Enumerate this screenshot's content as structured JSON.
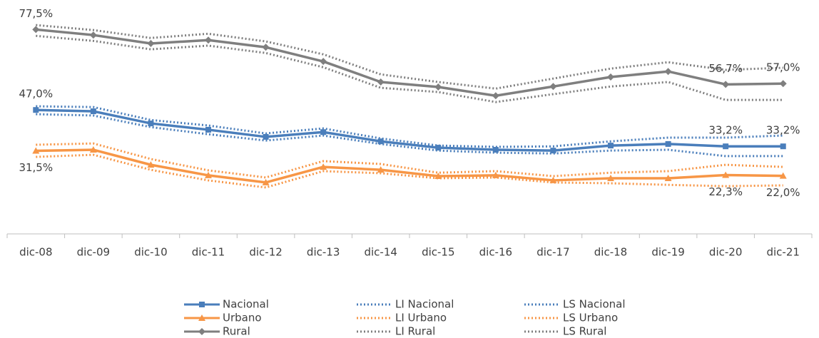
{
  "chart_data": {
    "type": "line",
    "categories": [
      "dic-08",
      "dic-09",
      "dic-10",
      "dic-11",
      "dic-12",
      "dic-13",
      "dic-14",
      "dic-15",
      "dic-16",
      "dic-17",
      "dic-18",
      "dic-19",
      "dic-20",
      "dic-21"
    ],
    "ylim": [
      0,
      86
    ],
    "series": [
      {
        "name": "Nacional",
        "color": "#4a7ebb",
        "style": "solid",
        "marker": "square",
        "values": [
          47.0,
          46.5,
          41.9,
          39.5,
          36.8,
          38.6,
          35.1,
          32.7,
          31.9,
          31.6,
          33.5,
          34.1,
          33.2,
          33.2
        ],
        "value_labels": [
          "47,0%",
          null,
          null,
          null,
          null,
          null,
          null,
          null,
          null,
          null,
          null,
          null,
          "33,2%",
          "33,2%"
        ]
      },
      {
        "name": "LI Nacional",
        "color": "#4a7ebb",
        "style": "dotted",
        "values": [
          45.4,
          44.9,
          40.5,
          37.8,
          35.4,
          37.3,
          34.1,
          31.6,
          30.8,
          30.5,
          31.6,
          31.9,
          29.5,
          29.5
        ]
      },
      {
        "name": "LS Nacional",
        "color": "#4a7ebb",
        "style": "dotted",
        "values": [
          48.4,
          48.1,
          43.2,
          41.1,
          38.1,
          40.0,
          36.2,
          33.5,
          33.0,
          33.2,
          35.1,
          36.5,
          36.5,
          37.3
        ]
      },
      {
        "name": "Urbano",
        "color": "#f79646",
        "style": "solid",
        "marker": "triangle",
        "values": [
          31.5,
          31.9,
          26.2,
          22.2,
          19.5,
          25.4,
          24.3,
          21.9,
          22.2,
          20.3,
          21.1,
          21.1,
          22.3,
          22.0
        ],
        "value_labels": [
          "31,5%",
          null,
          null,
          null,
          null,
          null,
          null,
          null,
          null,
          null,
          null,
          null,
          "22,3%",
          "22,0%"
        ]
      },
      {
        "name": "LI Urbano",
        "color": "#f79646",
        "style": "dotted",
        "values": [
          29.2,
          30.0,
          24.3,
          20.3,
          17.6,
          23.8,
          23.0,
          21.1,
          21.4,
          19.5,
          19.2,
          18.6,
          18.1,
          18.4
        ]
      },
      {
        "name": "LS Urbano",
        "color": "#f79646",
        "style": "dotted",
        "values": [
          33.8,
          34.3,
          28.4,
          24.1,
          21.4,
          27.6,
          26.5,
          23.2,
          23.8,
          21.9,
          23.2,
          23.8,
          26.2,
          25.4
        ]
      },
      {
        "name": "Rural",
        "color": "#7f7f7f",
        "style": "solid",
        "marker": "diamond",
        "values": [
          77.5,
          75.4,
          72.2,
          73.5,
          70.8,
          65.4,
          57.6,
          55.7,
          52.4,
          55.9,
          59.5,
          61.6,
          56.7,
          57.0
        ],
        "value_labels": [
          "77,5%",
          null,
          null,
          null,
          null,
          null,
          null,
          null,
          null,
          null,
          null,
          null,
          "56,7%",
          "57,0%"
        ]
      },
      {
        "name": "LI Rural",
        "color": "#7f7f7f",
        "style": "dotted",
        "values": [
          75.1,
          73.2,
          70.0,
          71.4,
          68.6,
          63.2,
          55.4,
          53.8,
          50.0,
          53.0,
          55.9,
          57.6,
          50.8,
          50.8
        ]
      },
      {
        "name": "LS Rural",
        "color": "#7f7f7f",
        "style": "dotted",
        "values": [
          79.2,
          77.3,
          74.3,
          75.9,
          73.0,
          68.1,
          60.5,
          57.6,
          55.1,
          58.9,
          62.7,
          65.1,
          62.2,
          63.0
        ]
      }
    ]
  }
}
